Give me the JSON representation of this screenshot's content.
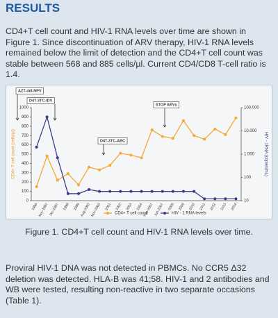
{
  "header": {
    "title": "RESULTS"
  },
  "paragraphs": [
    "CD4+T cell count and HIV-1 RNA levels over time are shown in Figure 1. Since discontinuation of ARV therapy, HIV-1 RNA levels remained below the limit of detection and the CD4+T cell count was stable between 568 and 885 cells/µl. Current CD4/CD8 T-cell ratio is 1.4.",
    "Proviral HIV-1 DNA was not detected in PBMCs. No CCR5 Δ32 deletion was detected. HLA-B was 41;58. HIV-1 and 2 antibodies and WB were tested, resulting non-reactive in two separate occasions (Table 1)."
  ],
  "chart_data": {
    "type": "line",
    "y_label": "CD4+ T cell count (cells/µl)",
    "y2_label": "HIV - 1RNA (copies/mL)",
    "categories": [
      "1996",
      "Nov-1997",
      "Dic-1997",
      "1998",
      "1999",
      "Aug-2000",
      "Nov-2000",
      "2001",
      "2002",
      "2003",
      "2004",
      "Feb-2007",
      "Jun-2007",
      "2008",
      "2009",
      "2010",
      "2011",
      "2012",
      "2013",
      "2014"
    ],
    "series": [
      {
        "name": "CD4+ T cell count",
        "color": "#f5a833",
        "values": [
          150,
          480,
          220,
          290,
          170,
          360,
          330,
          380,
          510,
          490,
          460,
          760,
          690,
          670,
          860,
          700,
          660,
          770,
          710,
          890
        ]
      },
      {
        "name": "HIV - 1 RNA levels",
        "color": "#3d3a8a",
        "axis": "y2",
        "values": [
          2000,
          40000,
          700,
          20,
          20,
          30,
          25,
          25,
          25,
          25,
          25,
          25,
          25,
          25,
          25,
          25,
          12,
          12,
          12,
          12
        ]
      }
    ],
    "ylim": [
      0,
      1000
    ],
    "yticks": [
      0,
      100,
      200,
      300,
      400,
      500,
      600,
      700,
      800,
      900,
      1000
    ],
    "y2lim": [
      10,
      100000
    ],
    "y2log": true,
    "y2ticks": [
      10,
      100,
      {
        "value": 1000,
        "label": "1.000"
      },
      {
        "value": 10000,
        "label": "10.000"
      },
      {
        "value": 100000,
        "label": "100.000"
      }
    ],
    "annotations": [
      "AZT-ddI-NPV",
      "D4T-3TC-IDV",
      "D4T-3TC-ABC",
      "STOP ARVs"
    ],
    "legend": "bottom"
  },
  "caption": "Figure 1. CD4+T cell count and HIV-1 RNA levels over time."
}
